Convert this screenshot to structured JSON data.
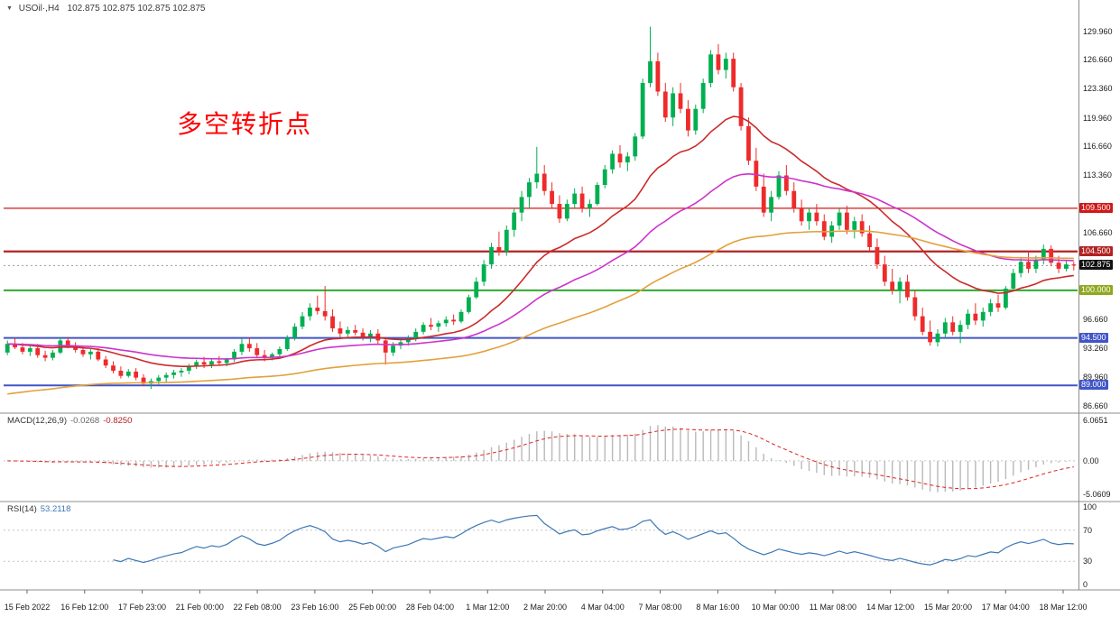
{
  "window": {
    "symbol_timeframe": "USOil·,H4",
    "quotes": "102.875 102.875 102.875 102.875"
  },
  "annotation": {
    "text": "多空转折点",
    "color": "#FF0000"
  },
  "chart_data": {
    "type": "candlestick",
    "title": "USOil H4",
    "colors": {
      "up": "#00AF50",
      "down": "#EE2B2B"
    },
    "current_price": {
      "label": "102.875",
      "price": 102.875,
      "bg": "#111111"
    },
    "levels": [
      {
        "label": "109.500",
        "price": 109.5,
        "color": "#D01818",
        "width": 1.3
      },
      {
        "label": "104.500",
        "price": 104.5,
        "color": "#B22222",
        "width": 2.2
      },
      {
        "label": "100.000",
        "price": 100.0,
        "color": "#2FA82F",
        "width": 2,
        "label_bg": "#8FA81E"
      },
      {
        "label": "94.500",
        "price": 94.5,
        "color": "#4155C8",
        "width": 2
      },
      {
        "label": "89.000",
        "price": 89.0,
        "color": "#4155C8",
        "width": 2
      }
    ],
    "y_ticks": [
      {
        "label": "129.960",
        "value": 129.96
      },
      {
        "label": "126.660",
        "value": 126.66
      },
      {
        "label": "123.360",
        "value": 123.36
      },
      {
        "label": "119.960",
        "value": 119.96
      },
      {
        "label": "116.660",
        "value": 116.66
      },
      {
        "label": "113.360",
        "value": 113.36
      },
      {
        "label": "106.660",
        "value": 106.66
      },
      {
        "label": "96.660",
        "value": 96.66
      },
      {
        "label": "93.260",
        "value": 93.26
      },
      {
        "label": "89.960",
        "value": 89.96
      },
      {
        "label": "86.660",
        "value": 86.66
      }
    ],
    "x_labels": [
      "15 Feb 2022",
      "16 Feb 12:00",
      "17 Feb 23:00",
      "21 Feb 00:00",
      "22 Feb 08:00",
      "23 Feb 16:00",
      "25 Feb 00:00",
      "28 Feb 04:00",
      "1 Mar 12:00",
      "2 Mar 20:00",
      "4 Mar 04:00",
      "7 Mar 08:00",
      "8 Mar 16:00",
      "10 Mar 00:00",
      "11 Mar 08:00",
      "14 Mar 12:00",
      "15 Mar 20:00",
      "17 Mar 04:00",
      "18 Mar 12:00"
    ],
    "moving_averages": [
      {
        "name": "ma-fast",
        "period": 20,
        "color": "#CC2A2A"
      },
      {
        "name": "ma-mid",
        "period": 45,
        "color": "#CC33CC"
      },
      {
        "name": "ma-slow",
        "period": 90,
        "color": "#E2A13C",
        "seed": 88.0
      }
    ],
    "indicators": {
      "macd": {
        "label": "MACD(12,26,9)",
        "value1": "-0.0268",
        "value2": "-0.8250",
        "params": {
          "fast": 12,
          "slow": 26,
          "signal": 9
        },
        "histogram_color": "#b9b9b9",
        "signal_color": "#DD2222",
        "scale": [
          {
            "label": "6.0651",
            "value": 6.0651
          },
          {
            "label": "0.00",
            "value": 0
          },
          {
            "label": "-5.0609",
            "value": -5.0609
          }
        ]
      },
      "rsi": {
        "label": "RSI(14)",
        "value": "53.2118",
        "period": 14,
        "color": "#3C78B4",
        "levels": [
          70,
          30
        ],
        "scale": [
          {
            "label": "100",
            "value": 100
          },
          {
            "label": "70",
            "value": 70
          },
          {
            "label": "30",
            "value": 30
          },
          {
            "label": "0",
            "value": 0
          }
        ]
      }
    },
    "ohlc": [
      [
        92.8,
        94.2,
        92.5,
        93.8
      ],
      [
        93.8,
        94.5,
        93.2,
        93.4
      ],
      [
        93.4,
        93.9,
        92.6,
        92.9
      ],
      [
        92.9,
        93.6,
        92.4,
        93.3
      ],
      [
        93.3,
        93.8,
        92.2,
        92.5
      ],
      [
        92.5,
        93.0,
        91.8,
        92.2
      ],
      [
        92.2,
        93.1,
        91.9,
        92.8
      ],
      [
        92.8,
        94.6,
        92.6,
        94.2
      ],
      [
        94.2,
        94.6,
        93.3,
        93.6
      ],
      [
        93.6,
        94.0,
        92.8,
        93.1
      ],
      [
        93.1,
        93.5,
        92.3,
        92.6
      ],
      [
        92.6,
        93.2,
        92.0,
        92.9
      ],
      [
        92.9,
        93.3,
        91.8,
        92.0
      ],
      [
        92.0,
        92.4,
        91.0,
        91.3
      ],
      [
        91.3,
        91.8,
        90.4,
        90.7
      ],
      [
        90.7,
        91.2,
        89.8,
        90.1
      ],
      [
        90.1,
        90.9,
        89.9,
        90.6
      ],
      [
        90.6,
        91.0,
        89.6,
        89.9
      ],
      [
        89.9,
        90.3,
        88.9,
        89.2
      ],
      [
        89.2,
        89.8,
        88.6,
        89.5
      ],
      [
        89.5,
        90.2,
        89.1,
        89.9
      ],
      [
        89.9,
        90.5,
        89.4,
        90.2
      ],
      [
        90.2,
        90.8,
        89.8,
        90.5
      ],
      [
        90.5,
        91.0,
        90.0,
        90.7
      ],
      [
        90.7,
        91.5,
        90.3,
        91.2
      ],
      [
        91.2,
        92.0,
        90.9,
        91.7
      ],
      [
        91.7,
        92.3,
        91.0,
        91.4
      ],
      [
        91.4,
        92.0,
        91.0,
        91.8
      ],
      [
        91.8,
        92.4,
        91.3,
        91.6
      ],
      [
        91.6,
        92.2,
        91.2,
        92.0
      ],
      [
        92.0,
        93.2,
        91.7,
        92.9
      ],
      [
        92.9,
        94.4,
        92.5,
        93.8
      ],
      [
        93.8,
        94.5,
        92.9,
        93.3
      ],
      [
        93.3,
        93.9,
        92.2,
        92.5
      ],
      [
        92.5,
        93.1,
        91.8,
        92.2
      ],
      [
        92.2,
        92.8,
        91.9,
        92.6
      ],
      [
        92.6,
        93.5,
        92.3,
        93.2
      ],
      [
        93.2,
        94.8,
        93.0,
        94.5
      ],
      [
        94.5,
        96.2,
        94.2,
        95.8
      ],
      [
        95.8,
        97.5,
        95.5,
        97.0
      ],
      [
        97.0,
        98.5,
        96.5,
        98.0
      ],
      [
        98.0,
        99.4,
        97.2,
        97.6
      ],
      [
        97.6,
        100.5,
        96.5,
        97.0
      ],
      [
        97.0,
        97.8,
        95.2,
        95.6
      ],
      [
        95.6,
        96.4,
        94.6,
        95.0
      ],
      [
        95.0,
        95.8,
        94.4,
        95.4
      ],
      [
        95.4,
        96.0,
        94.8,
        95.1
      ],
      [
        95.1,
        95.6,
        94.2,
        94.6
      ],
      [
        94.6,
        95.4,
        94.0,
        95.0
      ],
      [
        95.0,
        95.5,
        93.8,
        94.2
      ],
      [
        94.2,
        94.6,
        91.4,
        92.8
      ],
      [
        92.8,
        94.0,
        92.4,
        93.6
      ],
      [
        93.6,
        94.4,
        93.2,
        94.0
      ],
      [
        94.0,
        94.8,
        93.6,
        94.4
      ],
      [
        94.4,
        95.6,
        94.1,
        95.2
      ],
      [
        95.2,
        96.3,
        94.9,
        96.0
      ],
      [
        96.0,
        96.8,
        95.4,
        95.8
      ],
      [
        95.8,
        96.5,
        95.2,
        96.2
      ],
      [
        96.2,
        97.0,
        95.8,
        96.6
      ],
      [
        96.6,
        97.2,
        96.0,
        96.4
      ],
      [
        96.4,
        97.8,
        96.2,
        97.5
      ],
      [
        97.5,
        99.5,
        97.3,
        99.2
      ],
      [
        99.2,
        101.5,
        99.0,
        101.0
      ],
      [
        101.0,
        103.5,
        100.5,
        103.0
      ],
      [
        103.0,
        105.5,
        102.5,
        105.0
      ],
      [
        105.0,
        106.8,
        104.0,
        104.5
      ],
      [
        104.5,
        107.5,
        104.0,
        107.0
      ],
      [
        107.0,
        109.5,
        106.2,
        109.0
      ],
      [
        109.0,
        111.5,
        108.0,
        110.8
      ],
      [
        110.8,
        113.0,
        109.5,
        112.5
      ],
      [
        112.5,
        116.6,
        111.8,
        113.5
      ],
      [
        113.5,
        114.5,
        111.0,
        111.5
      ],
      [
        111.5,
        112.5,
        109.5,
        110.0
      ],
      [
        110.0,
        111.0,
        107.8,
        108.3
      ],
      [
        108.3,
        110.5,
        108.0,
        110.0
      ],
      [
        110.0,
        111.8,
        109.5,
        111.2
      ],
      [
        111.2,
        112.0,
        109.0,
        109.5
      ],
      [
        109.5,
        110.5,
        108.5,
        110.0
      ],
      [
        110.0,
        112.5,
        109.8,
        112.2
      ],
      [
        112.2,
        114.5,
        111.8,
        114.0
      ],
      [
        114.0,
        116.2,
        113.5,
        115.8
      ],
      [
        115.8,
        116.8,
        114.2,
        114.8
      ],
      [
        114.8,
        116.0,
        113.8,
        115.5
      ],
      [
        115.5,
        118.2,
        115.0,
        117.8
      ],
      [
        117.8,
        124.5,
        117.5,
        124.0
      ],
      [
        124.0,
        130.5,
        123.5,
        126.5
      ],
      [
        126.5,
        127.5,
        122.5,
        123.0
      ],
      [
        123.0,
        124.0,
        119.5,
        120.0
      ],
      [
        120.0,
        123.5,
        119.0,
        122.8
      ],
      [
        122.8,
        124.0,
        120.5,
        121.0
      ],
      [
        121.0,
        122.0,
        117.8,
        118.5
      ],
      [
        118.5,
        121.5,
        118.0,
        121.0
      ],
      [
        121.0,
        124.5,
        120.5,
        124.0
      ],
      [
        124.0,
        127.8,
        123.5,
        127.3
      ],
      [
        127.3,
        128.5,
        125.0,
        125.5
      ],
      [
        125.5,
        127.5,
        124.5,
        126.8
      ],
      [
        126.8,
        127.5,
        123.0,
        123.5
      ],
      [
        123.5,
        124.0,
        118.5,
        119.0
      ],
      [
        119.0,
        120.0,
        114.5,
        115.0
      ],
      [
        115.0,
        116.5,
        111.5,
        112.0
      ],
      [
        112.0,
        113.5,
        108.5,
        109.0
      ],
      [
        109.0,
        111.5,
        108.0,
        110.8
      ],
      [
        110.8,
        113.8,
        110.5,
        113.3
      ],
      [
        113.3,
        114.5,
        111.0,
        111.5
      ],
      [
        111.5,
        112.5,
        109.0,
        109.5
      ],
      [
        109.5,
        110.5,
        107.5,
        108.0
      ],
      [
        108.0,
        109.5,
        107.0,
        109.0
      ],
      [
        109.0,
        110.0,
        107.5,
        108.0
      ],
      [
        108.0,
        108.8,
        105.8,
        106.2
      ],
      [
        106.2,
        108.0,
        105.5,
        107.5
      ],
      [
        107.5,
        109.5,
        107.0,
        109.0
      ],
      [
        109.0,
        109.8,
        106.5,
        107.0
      ],
      [
        107.0,
        108.5,
        106.0,
        108.0
      ],
      [
        108.0,
        108.8,
        106.2,
        106.6
      ],
      [
        106.6,
        107.5,
        104.5,
        105.0
      ],
      [
        105.0,
        106.0,
        102.5,
        103.0
      ],
      [
        103.0,
        104.0,
        100.5,
        101.0
      ],
      [
        101.0,
        102.5,
        99.5,
        100.0
      ],
      [
        100.0,
        101.5,
        98.5,
        101.0
      ],
      [
        101.0,
        101.8,
        98.8,
        99.2
      ],
      [
        99.2,
        100.0,
        96.5,
        97.0
      ],
      [
        97.0,
        98.0,
        94.8,
        95.2
      ],
      [
        95.2,
        96.5,
        93.6,
        94.0
      ],
      [
        94.0,
        95.5,
        93.5,
        95.0
      ],
      [
        95.0,
        96.8,
        94.5,
        96.3
      ],
      [
        96.3,
        97.0,
        94.8,
        95.2
      ],
      [
        95.2,
        96.5,
        93.9,
        96.0
      ],
      [
        96.0,
        97.8,
        95.5,
        97.3
      ],
      [
        97.3,
        98.5,
        96.0,
        96.5
      ],
      [
        96.5,
        98.0,
        95.8,
        97.5
      ],
      [
        97.5,
        99.0,
        97.0,
        98.5
      ],
      [
        98.5,
        99.5,
        97.5,
        98.0
      ],
      [
        98.0,
        100.5,
        97.8,
        100.2
      ],
      [
        100.2,
        102.5,
        100.0,
        102.0
      ],
      [
        102.0,
        103.8,
        101.5,
        103.3
      ],
      [
        103.3,
        104.5,
        102.0,
        102.5
      ],
      [
        102.5,
        104.0,
        102.0,
        103.5
      ],
      [
        103.5,
        105.3,
        103.0,
        104.8
      ],
      [
        104.8,
        105.2,
        102.8,
        103.2
      ],
      [
        103.2,
        104.0,
        102.0,
        102.5
      ],
      [
        102.5,
        103.5,
        102.2,
        103.0
      ],
      [
        103.0,
        103.3,
        102.3,
        102.875
      ]
    ]
  }
}
